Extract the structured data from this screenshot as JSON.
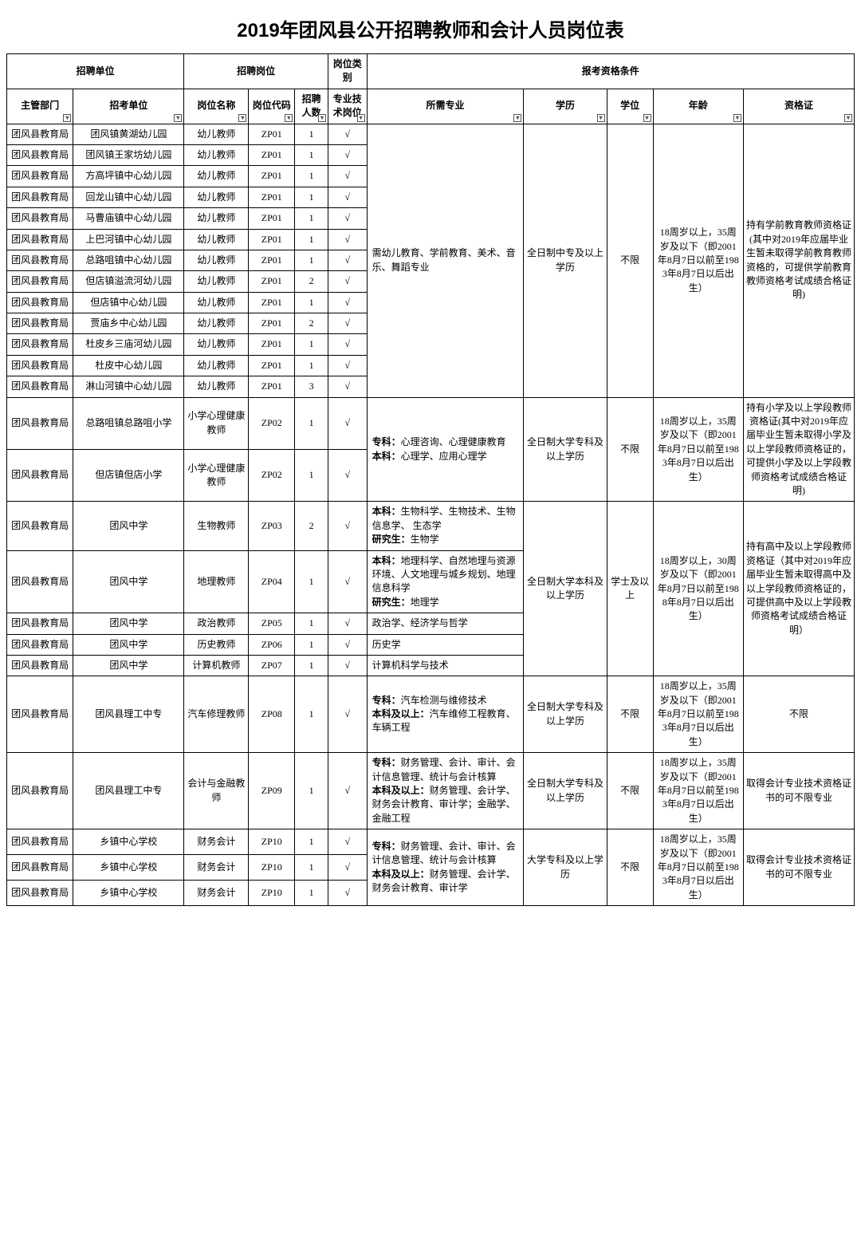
{
  "title": "2019年团风县公开招聘教师和会计人员岗位表",
  "header": {
    "group_unit": "招聘单位",
    "group_position": "招聘岗位",
    "group_kind": "岗位类别",
    "group_qual": "报考资格条件",
    "department": "主管部门",
    "recruit_unit": "招考单位",
    "position_name": "岗位名称",
    "position_code": "岗位代码",
    "count": "招聘人数",
    "tech_post": "专业技术岗位",
    "major": "所需专业",
    "education": "学历",
    "degree": "学位",
    "age": "年龄",
    "certificate": "资格证"
  },
  "dept": "团风县教育局",
  "check": "√",
  "groupA": {
    "major": "需幼儿教育、学前教育、美术、音乐、舞蹈专业",
    "education": "全日制中专及以上学历",
    "degree": "不限",
    "age": "18周岁以上，35周岁及以下（即2001年8月7日以前至1983年8月7日以后出生）",
    "certificate": "持有学前教育教师资格证(其中对2019年应届毕业生暂未取得学前教育教师资格的，可提供学前教育教师资格考试成绩合格证明)",
    "rows": [
      {
        "unit": "团风镇黄湖幼儿园",
        "pname": "幼儿教师",
        "pcode": "ZP01",
        "count": "1"
      },
      {
        "unit": "团风镇王家坊幼儿园",
        "pname": "幼儿教师",
        "pcode": "ZP01",
        "count": "1"
      },
      {
        "unit": "方高坪镇中心幼儿园",
        "pname": "幼儿教师",
        "pcode": "ZP01",
        "count": "1"
      },
      {
        "unit": "回龙山镇中心幼儿园",
        "pname": "幼儿教师",
        "pcode": "ZP01",
        "count": "1"
      },
      {
        "unit": "马曹庙镇中心幼儿园",
        "pname": "幼儿教师",
        "pcode": "ZP01",
        "count": "1"
      },
      {
        "unit": "上巴河镇中心幼儿园",
        "pname": "幼儿教师",
        "pcode": "ZP01",
        "count": "1"
      },
      {
        "unit": "总路咀镇中心幼儿园",
        "pname": "幼儿教师",
        "pcode": "ZP01",
        "count": "1"
      },
      {
        "unit": "但店镇溢流河幼儿园",
        "pname": "幼儿教师",
        "pcode": "ZP01",
        "count": "2"
      },
      {
        "unit": "但店镇中心幼儿园",
        "pname": "幼儿教师",
        "pcode": "ZP01",
        "count": "1"
      },
      {
        "unit": "贾庙乡中心幼儿园",
        "pname": "幼儿教师",
        "pcode": "ZP01",
        "count": "2"
      },
      {
        "unit": "杜皮乡三庙河幼儿园",
        "pname": "幼儿教师",
        "pcode": "ZP01",
        "count": "1"
      },
      {
        "unit": "杜皮中心幼儿园",
        "pname": "幼儿教师",
        "pcode": "ZP01",
        "count": "1"
      },
      {
        "unit": "淋山河镇中心幼儿园",
        "pname": "幼儿教师",
        "pcode": "ZP01",
        "count": "3"
      }
    ]
  },
  "groupB": {
    "major": "专科：心理咨询、心理健康教育\n本科：心理学、应用心理学",
    "education": "全日制大学专科及以上学历",
    "degree": "不限",
    "age": "18周岁以上，35周岁及以下（即2001年8月7日以前至1983年8月7日以后出生）",
    "certificate": "持有小学及以上学段教师资格证(其中对2019年应届毕业生暂未取得小学及以上学段教师资格证的，可提供小学及以上学段教师资格考试成绩合格证明)",
    "rows": [
      {
        "unit": "总路咀镇总路咀小学",
        "pname": "小学心理健康教师",
        "pcode": "ZP02",
        "count": "1"
      },
      {
        "unit": "但店镇但店小学",
        "pname": "小学心理健康教师",
        "pcode": "ZP02",
        "count": "1"
      }
    ]
  },
  "groupC": {
    "education": "全日制大学本科及以上学历",
    "degree": "学士及以上",
    "age": "18周岁以上，30周岁及以下（即2001年8月7日以前至1988年8月7日以后出生）",
    "certificate": "持有高中及以上学段教师资格证（其中对2019年应届毕业生暂未取得高中及以上学段教师资格证的，可提供高中及以上学段教师资格考试成绩合格证明）",
    "rows": [
      {
        "unit": "团风中学",
        "pname": "生物教师",
        "pcode": "ZP03",
        "count": "2",
        "major": "本科：生物科学、生物技术、生物信息学、 生态学\n研究生：生物学"
      },
      {
        "unit": "团风中学",
        "pname": "地理教师",
        "pcode": "ZP04",
        "count": "1",
        "major": "本科：地理科学、自然地理与资源环境、人文地理与城乡规划、地理信息科学\n研究生：地理学"
      },
      {
        "unit": "团风中学",
        "pname": "政治教师",
        "pcode": "ZP05",
        "count": "1",
        "major": "政治学、经济学与哲学"
      },
      {
        "unit": "团风中学",
        "pname": "历史教师",
        "pcode": "ZP06",
        "count": "1",
        "major": "历史学"
      },
      {
        "unit": "团风中学",
        "pname": "计算机教师",
        "pcode": "ZP07",
        "count": "1",
        "major": "计算机科学与技术"
      }
    ]
  },
  "rowD1": {
    "unit": "团风县理工中专",
    "pname": "汽车修理教师",
    "pcode": "ZP08",
    "count": "1",
    "major": "专科：汽车检测与维修技术\n本科及以上：汽车维修工程教育、车辆工程",
    "education": "全日制大学专科及以上学历",
    "degree": "不限",
    "age": "18周岁以上，35周岁及以下（即2001年8月7日以前至1983年8月7日以后出生）",
    "certificate": "不限"
  },
  "rowD2": {
    "unit": "团风县理工中专",
    "pname": "会计与金融教师",
    "pcode": "ZP09",
    "count": "1",
    "major": "专科：财务管理、会计、审计、会计信息管理、统计与会计核算\n本科及以上：财务管理、会计学、财务会计教育、审计学；金融学、金融工程",
    "education": "全日制大学专科及以上学历",
    "degree": "不限",
    "age": "18周岁以上，35周岁及以下（即2001年8月7日以前至1983年8月7日以后出生）",
    "certificate": "取得会计专业技术资格证书的可不限专业"
  },
  "groupE": {
    "major": "专科：财务管理、会计、审计、会计信息管理、统计与会计核算\n本科及以上：财务管理、会计学、财务会计教育、审计学",
    "education": "大学专科及以上学历",
    "degree": "不限",
    "age": "18周岁以上，35周岁及以下（即2001年8月7日以前至1983年8月7日以后出生）",
    "certificate": "取得会计专业技术资格证书的可不限专业",
    "rows": [
      {
        "unit": "乡镇中心学校",
        "pname": "财务会计",
        "pcode": "ZP10",
        "count": "1"
      },
      {
        "unit": "乡镇中心学校",
        "pname": "财务会计",
        "pcode": "ZP10",
        "count": "1"
      },
      {
        "unit": "乡镇中心学校",
        "pname": "财务会计",
        "pcode": "ZP10",
        "count": "1"
      }
    ]
  }
}
